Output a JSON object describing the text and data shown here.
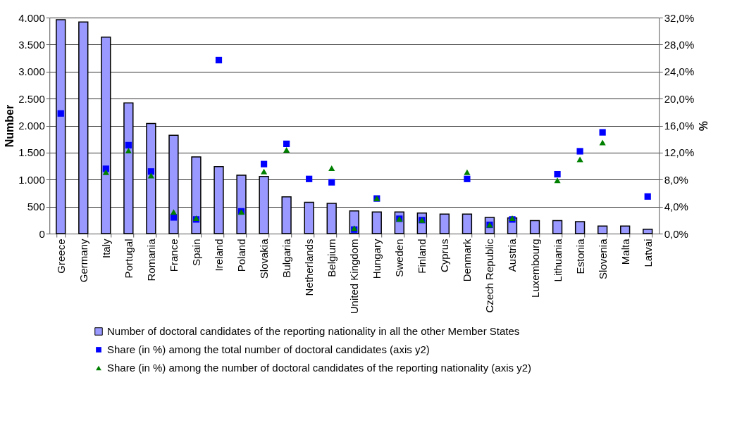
{
  "chart_data": {
    "type": "bar",
    "ylabel": "Number",
    "y2label": "%",
    "legend": "bottom",
    "grid": "y",
    "categories": [
      "Greece",
      "Germany",
      "Italy",
      "Portugal",
      "Romania",
      "France",
      "Spain",
      "Ireland",
      "Poland",
      "Slovakia",
      "Bulgaria",
      "Netherlands",
      "Belgium",
      "United Kingdom",
      "Hungary",
      "Sweden",
      "Finland",
      "Cyprus",
      "Denmark",
      "Czech Republic",
      "Austria",
      "Luxembourg",
      "Lithuania",
      "Estonia",
      "Slovenia",
      "Malta",
      "Latvai"
    ],
    "series": [
      {
        "name": "Number of doctoral candidates of the reporting nationality in all the other Member States",
        "color": "#9999ff",
        "values": [
          3960,
          3920,
          3640,
          2420,
          2040,
          1820,
          1420,
          1240,
          1080,
          1060,
          680,
          580,
          560,
          420,
          400,
          400,
          380,
          360,
          360,
          300,
          290,
          240,
          240,
          220,
          140,
          140,
          80
        ]
      },
      {
        "name": "Share (in %) among the total number of doctoral candidates (axis y2)",
        "type": "scatter",
        "axis": "y2",
        "marker": "square",
        "color": "#0000ff",
        "values": [
          17.8,
          null,
          9.6,
          13.1,
          9.2,
          2.4,
          2.1,
          25.7,
          3.3,
          10.3,
          13.3,
          8.1,
          7.6,
          0.6,
          5.2,
          2.2,
          2.0,
          null,
          8.1,
          1.3,
          2.1,
          null,
          8.8,
          12.2,
          15.0,
          null,
          5.5
        ]
      },
      {
        "name": "Share (in %) among the  number of doctoral candidates of the reporting nationality (axis y2)",
        "type": "scatter",
        "axis": "y2",
        "marker": "triangle",
        "color": "#008000",
        "values": [
          null,
          null,
          9.1,
          12.3,
          8.6,
          3.2,
          2.3,
          null,
          3.2,
          9.2,
          12.4,
          null,
          9.7,
          0.8,
          5.2,
          2.2,
          2.0,
          null,
          9.1,
          1.3,
          2.3,
          null,
          7.9,
          11.0,
          13.5,
          null,
          null
        ]
      }
    ],
    "ylim": [
      0,
      4000
    ],
    "yticks": [
      {
        "value": 0,
        "label": "0"
      },
      {
        "value": 500,
        "label": "500"
      },
      {
        "value": 1000,
        "label": "1.000"
      },
      {
        "value": 1500,
        "label": "1.500"
      },
      {
        "value": 2000,
        "label": "2.000"
      },
      {
        "value": 2500,
        "label": "2.500"
      },
      {
        "value": 3000,
        "label": "3.000"
      },
      {
        "value": 3500,
        "label": "3.500"
      },
      {
        "value": 4000,
        "label": "4.000"
      }
    ],
    "y2lim": [
      0,
      32
    ],
    "y2ticks": [
      {
        "value": 0,
        "label": "0,0%"
      },
      {
        "value": 4,
        "label": "4,0%"
      },
      {
        "value": 8,
        "label": "8,0%"
      },
      {
        "value": 12,
        "label": "12,0%"
      },
      {
        "value": 16,
        "label": "16,0%"
      },
      {
        "value": 20,
        "label": "20,0%"
      },
      {
        "value": 24,
        "label": "24,0%"
      },
      {
        "value": 28,
        "label": "28,0%"
      },
      {
        "value": 32,
        "label": "32,0%"
      }
    ]
  }
}
